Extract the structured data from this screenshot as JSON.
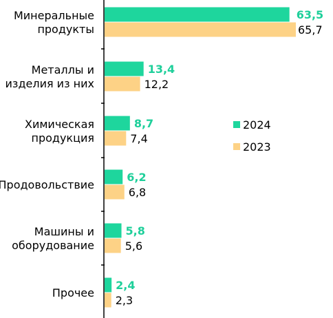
{
  "chart_data": {
    "type": "bar",
    "orientation": "horizontal",
    "categories": [
      [
        "Минеральные",
        "продукты"
      ],
      [
        "Металлы и",
        "изделия из них"
      ],
      [
        "Химическая",
        "продукция"
      ],
      [
        "Продовольствие"
      ],
      [
        "Машины и",
        "оборудование"
      ],
      [
        "Прочее"
      ]
    ],
    "series": [
      {
        "name": "2024",
        "color": "#1ed69d",
        "values": [
          63.5,
          13.4,
          8.7,
          6.2,
          5.8,
          2.4
        ],
        "labels": [
          "63,5",
          "13,4",
          "8,7",
          "6,2",
          "5,8",
          "2,4"
        ]
      },
      {
        "name": "2023",
        "color": "#fdd286",
        "values": [
          65.7,
          12.2,
          7.4,
          6.8,
          5.6,
          2.3
        ],
        "labels": [
          "65,7",
          "12,2",
          "7,4",
          "6,8",
          "5,6",
          "2,3"
        ]
      }
    ],
    "xlim": [
      0,
      70
    ],
    "legend_position": "right",
    "grid": false
  }
}
